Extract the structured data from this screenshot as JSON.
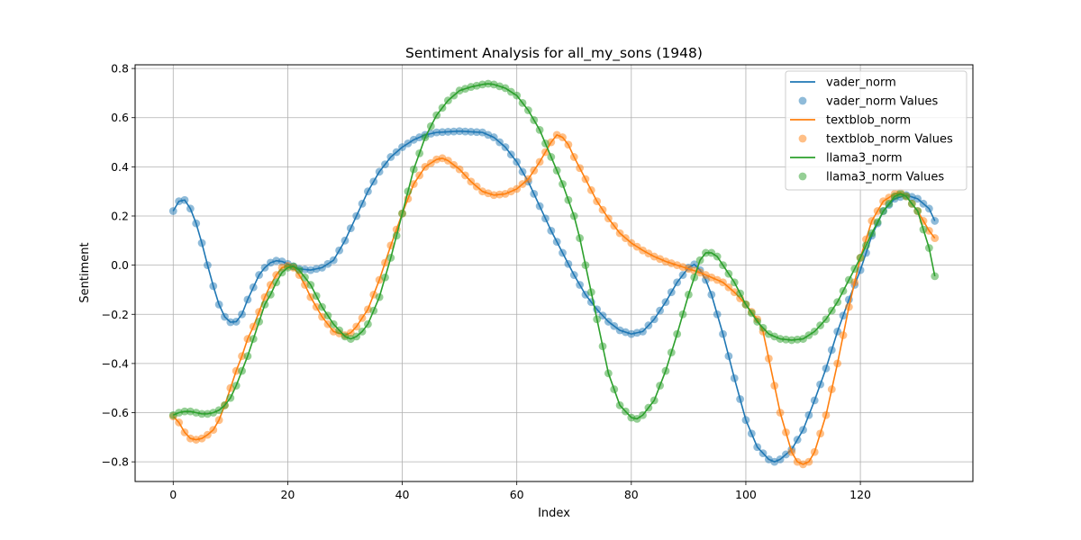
{
  "chart_data": {
    "type": "line",
    "title": "Sentiment Analysis for all_my_sons (1948)",
    "xlabel": "Index",
    "ylabel": "Sentiment",
    "xlim": [
      -6.65,
      139.65
    ],
    "ylim": [
      -0.88,
      0.815
    ],
    "x_ticks": [
      0,
      20,
      40,
      60,
      80,
      100,
      120
    ],
    "y_ticks": [
      -0.8,
      -0.6,
      -0.4,
      -0.2,
      0.0,
      0.2,
      0.4,
      0.6,
      0.8
    ],
    "y_tick_labels": [
      "−0.8",
      "−0.6",
      "−0.4",
      "−0.2",
      "0.0",
      "0.2",
      "0.4",
      "0.6",
      "0.8"
    ],
    "grid": true,
    "legend_position": "upper right",
    "legend": [
      {
        "label": "vader_norm",
        "kind": "line",
        "color": "#1f77b4"
      },
      {
        "label": "vader_norm Values",
        "kind": "marker",
        "color": "#1f77b4"
      },
      {
        "label": "textblob_norm",
        "kind": "line",
        "color": "#ff7f0e"
      },
      {
        "label": "textblob_norm Values",
        "kind": "marker",
        "color": "#ff7f0e"
      },
      {
        "label": "llama3_norm",
        "kind": "line",
        "color": "#2ca02c"
      },
      {
        "label": "llama3_norm Values",
        "kind": "marker",
        "color": "#2ca02c"
      }
    ],
    "n_points": 134,
    "series": [
      {
        "name": "vader_norm",
        "color": "#1f77b4",
        "knots": [
          [
            0,
            0.22
          ],
          [
            1,
            0.26
          ],
          [
            2,
            0.265
          ],
          [
            3,
            0.23
          ],
          [
            4,
            0.17
          ],
          [
            5,
            0.09
          ],
          [
            6,
            0.0
          ],
          [
            7,
            -0.085
          ],
          [
            8,
            -0.16
          ],
          [
            9,
            -0.21
          ],
          [
            10,
            -0.232
          ],
          [
            11,
            -0.23
          ],
          [
            12,
            -0.2
          ],
          [
            13,
            -0.14
          ],
          [
            14,
            -0.09
          ],
          [
            15,
            -0.04
          ],
          [
            16,
            -0.01
          ],
          [
            17,
            0.01
          ],
          [
            18,
            0.018
          ],
          [
            19,
            0.015
          ],
          [
            20,
            0.005
          ],
          [
            22,
            -0.015
          ],
          [
            24,
            -0.02
          ],
          [
            26,
            -0.01
          ],
          [
            28,
            0.02
          ],
          [
            30,
            0.1
          ],
          [
            32,
            0.2
          ],
          [
            34,
            0.3
          ],
          [
            36,
            0.38
          ],
          [
            38,
            0.44
          ],
          [
            40,
            0.48
          ],
          [
            42,
            0.51
          ],
          [
            44,
            0.53
          ],
          [
            46,
            0.54
          ],
          [
            50,
            0.545
          ],
          [
            54,
            0.54
          ],
          [
            56,
            0.52
          ],
          [
            58,
            0.48
          ],
          [
            60,
            0.42
          ],
          [
            62,
            0.34
          ],
          [
            64,
            0.24
          ],
          [
            66,
            0.14
          ],
          [
            68,
            0.05
          ],
          [
            70,
            -0.04
          ],
          [
            72,
            -0.12
          ],
          [
            74,
            -0.18
          ],
          [
            76,
            -0.23
          ],
          [
            78,
            -0.265
          ],
          [
            80,
            -0.28
          ],
          [
            82,
            -0.27
          ],
          [
            84,
            -0.22
          ],
          [
            86,
            -0.15
          ],
          [
            88,
            -0.07
          ],
          [
            90,
            -0.01
          ],
          [
            91,
            0.003
          ],
          [
            92,
            -0.02
          ],
          [
            93,
            -0.06
          ],
          [
            94,
            -0.12
          ],
          [
            96,
            -0.28
          ],
          [
            98,
            -0.46
          ],
          [
            100,
            -0.63
          ],
          [
            102,
            -0.74
          ],
          [
            104,
            -0.79
          ],
          [
            105,
            -0.8
          ],
          [
            106,
            -0.79
          ],
          [
            108,
            -0.75
          ],
          [
            110,
            -0.67
          ],
          [
            112,
            -0.55
          ],
          [
            114,
            -0.42
          ],
          [
            116,
            -0.27
          ],
          [
            118,
            -0.14
          ],
          [
            120,
            -0.02
          ],
          [
            122,
            0.12
          ],
          [
            124,
            0.22
          ],
          [
            126,
            0.27
          ],
          [
            128,
            0.285
          ],
          [
            130,
            0.27
          ],
          [
            132,
            0.23
          ],
          [
            133,
            0.18
          ]
        ]
      },
      {
        "name": "textblob_norm",
        "color": "#ff7f0e",
        "knots": [
          [
            0,
            -0.615
          ],
          [
            1,
            -0.64
          ],
          [
            2,
            -0.68
          ],
          [
            3,
            -0.705
          ],
          [
            4,
            -0.71
          ],
          [
            5,
            -0.705
          ],
          [
            6,
            -0.69
          ],
          [
            7,
            -0.67
          ],
          [
            8,
            -0.63
          ],
          [
            9,
            -0.57
          ],
          [
            10,
            -0.5
          ],
          [
            11,
            -0.43
          ],
          [
            12,
            -0.37
          ],
          [
            13,
            -0.3
          ],
          [
            14,
            -0.25
          ],
          [
            15,
            -0.19
          ],
          [
            16,
            -0.13
          ],
          [
            17,
            -0.08
          ],
          [
            18,
            -0.04
          ],
          [
            19,
            -0.01
          ],
          [
            20,
            -0.003
          ],
          [
            21,
            -0.01
          ],
          [
            22,
            -0.04
          ],
          [
            23,
            -0.08
          ],
          [
            24,
            -0.13
          ],
          [
            26,
            -0.21
          ],
          [
            28,
            -0.27
          ],
          [
            30,
            -0.285
          ],
          [
            31,
            -0.275
          ],
          [
            32,
            -0.25
          ],
          [
            34,
            -0.18
          ],
          [
            36,
            -0.06
          ],
          [
            38,
            0.08
          ],
          [
            40,
            0.21
          ],
          [
            42,
            0.33
          ],
          [
            44,
            0.4
          ],
          [
            46,
            0.43
          ],
          [
            47,
            0.435
          ],
          [
            48,
            0.425
          ],
          [
            50,
            0.39
          ],
          [
            52,
            0.34
          ],
          [
            54,
            0.3
          ],
          [
            56,
            0.285
          ],
          [
            58,
            0.29
          ],
          [
            60,
            0.31
          ],
          [
            62,
            0.35
          ],
          [
            64,
            0.42
          ],
          [
            66,
            0.5
          ],
          [
            67,
            0.53
          ],
          [
            68,
            0.52
          ],
          [
            69,
            0.49
          ],
          [
            70,
            0.44
          ],
          [
            72,
            0.35
          ],
          [
            74,
            0.26
          ],
          [
            76,
            0.19
          ],
          [
            78,
            0.13
          ],
          [
            80,
            0.09
          ],
          [
            82,
            0.06
          ],
          [
            84,
            0.035
          ],
          [
            86,
            0.015
          ],
          [
            88,
            0.0
          ],
          [
            90,
            -0.015
          ],
          [
            92,
            -0.03
          ],
          [
            94,
            -0.05
          ],
          [
            96,
            -0.07
          ],
          [
            98,
            -0.11
          ],
          [
            100,
            -0.16
          ],
          [
            102,
            -0.22
          ],
          [
            103,
            -0.27
          ],
          [
            104,
            -0.38
          ],
          [
            106,
            -0.6
          ],
          [
            108,
            -0.76
          ],
          [
            109,
            -0.8
          ],
          [
            110,
            -0.81
          ],
          [
            111,
            -0.8
          ],
          [
            112,
            -0.76
          ],
          [
            114,
            -0.61
          ],
          [
            116,
            -0.4
          ],
          [
            118,
            -0.17
          ],
          [
            120,
            0.03
          ],
          [
            122,
            0.18
          ],
          [
            124,
            0.26
          ],
          [
            126,
            0.29
          ],
          [
            127,
            0.295
          ],
          [
            128,
            0.28
          ],
          [
            130,
            0.22
          ],
          [
            132,
            0.14
          ],
          [
            133,
            0.11
          ]
        ]
      },
      {
        "name": "llama3_norm",
        "color": "#2ca02c",
        "knots": [
          [
            0,
            -0.61
          ],
          [
            1,
            -0.6
          ],
          [
            2,
            -0.595
          ],
          [
            3,
            -0.595
          ],
          [
            4,
            -0.6
          ],
          [
            5,
            -0.605
          ],
          [
            6,
            -0.605
          ],
          [
            7,
            -0.6
          ],
          [
            8,
            -0.59
          ],
          [
            9,
            -0.57
          ],
          [
            10,
            -0.54
          ],
          [
            11,
            -0.49
          ],
          [
            12,
            -0.43
          ],
          [
            13,
            -0.37
          ],
          [
            14,
            -0.3
          ],
          [
            15,
            -0.23
          ],
          [
            16,
            -0.16
          ],
          [
            17,
            -0.12
          ],
          [
            18,
            -0.07
          ],
          [
            19,
            -0.03
          ],
          [
            20,
            -0.01
          ],
          [
            21,
            -0.005
          ],
          [
            22,
            -0.02
          ],
          [
            23,
            -0.05
          ],
          [
            24,
            -0.08
          ],
          [
            26,
            -0.17
          ],
          [
            28,
            -0.24
          ],
          [
            30,
            -0.29
          ],
          [
            31,
            -0.3
          ],
          [
            32,
            -0.29
          ],
          [
            33,
            -0.27
          ],
          [
            34,
            -0.24
          ],
          [
            36,
            -0.13
          ],
          [
            38,
            0.03
          ],
          [
            40,
            0.21
          ],
          [
            42,
            0.39
          ],
          [
            44,
            0.52
          ],
          [
            46,
            0.61
          ],
          [
            48,
            0.67
          ],
          [
            50,
            0.71
          ],
          [
            52,
            0.725
          ],
          [
            54,
            0.735
          ],
          [
            55,
            0.738
          ],
          [
            56,
            0.735
          ],
          [
            58,
            0.72
          ],
          [
            60,
            0.69
          ],
          [
            62,
            0.63
          ],
          [
            64,
            0.55
          ],
          [
            66,
            0.44
          ],
          [
            68,
            0.33
          ],
          [
            70,
            0.2
          ],
          [
            71,
            0.11
          ],
          [
            72,
            0.0
          ],
          [
            74,
            -0.22
          ],
          [
            76,
            -0.44
          ],
          [
            78,
            -0.57
          ],
          [
            80,
            -0.62
          ],
          [
            81,
            -0.625
          ],
          [
            82,
            -0.61
          ],
          [
            84,
            -0.55
          ],
          [
            86,
            -0.43
          ],
          [
            88,
            -0.28
          ],
          [
            90,
            -0.12
          ],
          [
            92,
            0.02
          ],
          [
            93,
            0.05
          ],
          [
            94,
            0.05
          ],
          [
            95,
            0.035
          ],
          [
            96,
            0.0
          ],
          [
            98,
            -0.07
          ],
          [
            100,
            -0.16
          ],
          [
            102,
            -0.23
          ],
          [
            104,
            -0.28
          ],
          [
            106,
            -0.3
          ],
          [
            108,
            -0.305
          ],
          [
            110,
            -0.3
          ],
          [
            112,
            -0.27
          ],
          [
            114,
            -0.22
          ],
          [
            116,
            -0.15
          ],
          [
            118,
            -0.06
          ],
          [
            120,
            0.03
          ],
          [
            122,
            0.13
          ],
          [
            124,
            0.22
          ],
          [
            126,
            0.28
          ],
          [
            127,
            0.29
          ],
          [
            128,
            0.28
          ],
          [
            130,
            0.22
          ],
          [
            132,
            0.07
          ],
          [
            133,
            -0.045
          ]
        ]
      }
    ]
  }
}
